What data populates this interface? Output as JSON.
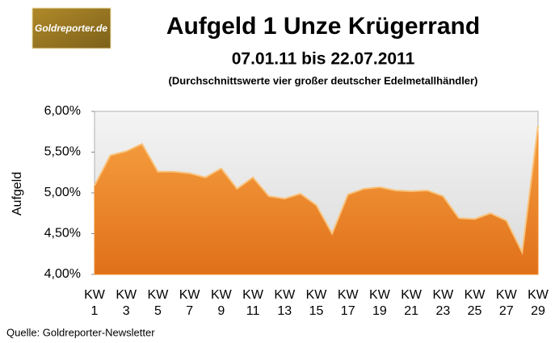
{
  "chart_data": {
    "type": "area",
    "logo": "Goldreporter.de",
    "title": "Aufgeld 1 Unze Krügerrand",
    "subtitle": "07.01.11 bis 22.07.2011",
    "note": "(Durchschnittswerte vier großer deutscher Edelmetallhändler)",
    "y_label": "Aufgeld",
    "source": "Quelle: Goldreporter-Newsletter",
    "categories": [
      "KW 1",
      null,
      "KW 3",
      null,
      "KW 5",
      null,
      "KW 7",
      null,
      "KW 9",
      null,
      "KW 11",
      null,
      "KW 13",
      null,
      "KW 15",
      null,
      "KW 17",
      null,
      "KW 19",
      null,
      "KW 21",
      null,
      "KW 23",
      null,
      "KW 25",
      null,
      "KW 27",
      null,
      "KW 29"
    ],
    "values": [
      5.09,
      5.46,
      5.51,
      5.6,
      5.26,
      5.26,
      5.24,
      5.19,
      5.3,
      5.05,
      5.19,
      4.96,
      4.93,
      4.99,
      4.85,
      4.5,
      4.98,
      5.05,
      5.07,
      5.03,
      5.02,
      5.03,
      4.96,
      4.69,
      4.68,
      4.75,
      4.66,
      4.27,
      5.82
    ],
    "color": "#f08a24",
    "ylim": [
      4,
      6
    ],
    "yticks": [
      {
        "value": 4,
        "label": "4,00%"
      },
      {
        "value": 4.5,
        "label": "4,50%"
      },
      {
        "value": 5,
        "label": "5,00%"
      },
      {
        "value": 5.5,
        "label": "5,50%"
      },
      {
        "value": 6,
        "label": "6,00%"
      }
    ]
  }
}
